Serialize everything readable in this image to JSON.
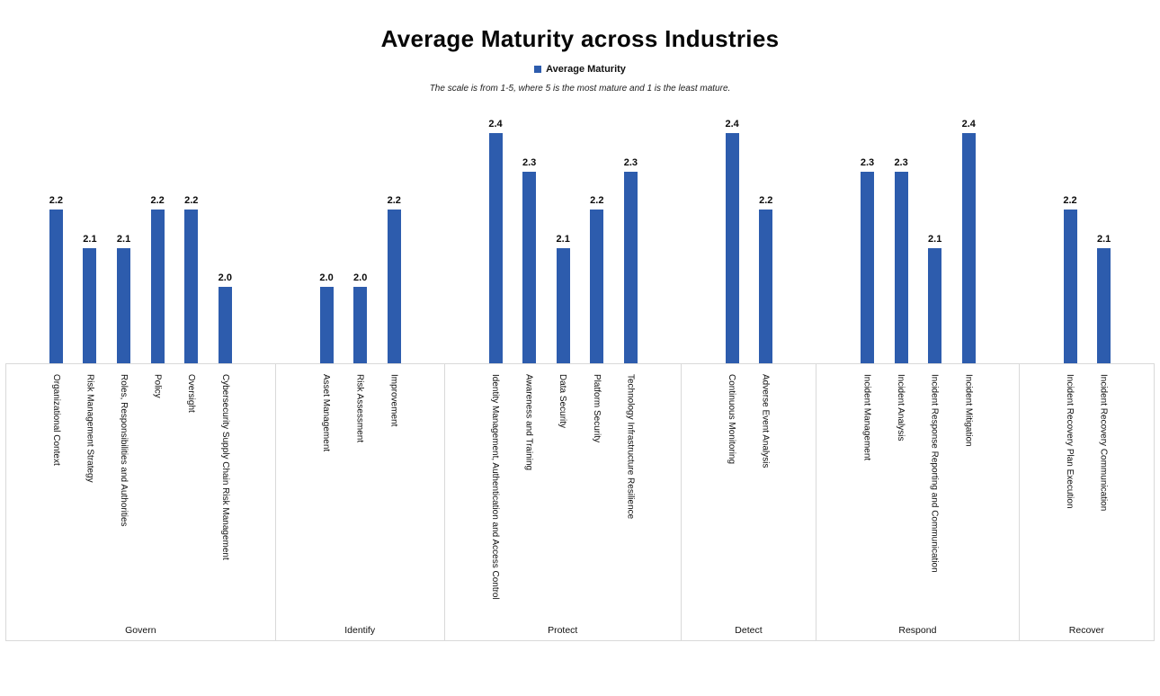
{
  "title": "Average Maturity across Industries",
  "subtitle": "The scale is from 1-5, where 5 is the most mature and 1 is the least mature.",
  "legend": {
    "label": "Average Maturity",
    "swatch_icon": "square-icon"
  },
  "colors": {
    "bar": "#2d5cad",
    "grid_line": "#d9d9d9",
    "text": "#000000"
  },
  "chart_data": {
    "type": "bar",
    "title": "Average Maturity across Industries",
    "subtitle_note": "The scale is from 1-5, where 5 is the most mature and 1 is the least mature.",
    "legend_entries": [
      "Average Maturity"
    ],
    "legend_position": "top",
    "grid": false,
    "y_axis_visible": false,
    "stated_scale": [
      1,
      5
    ],
    "ylim": [
      1.8,
      2.466
    ],
    "value_label_format": "one-decimal",
    "groups": [
      {
        "label": "Govern",
        "categories": [
          "Organizational Context",
          "Risk Management Strategy",
          "Roles, Responsibilities and Authorities",
          "Policy",
          "Oversight",
          "Cybersecurity Supply Chain Risk Management"
        ],
        "values": [
          2.2,
          2.1,
          2.1,
          2.2,
          2.2,
          2.0
        ]
      },
      {
        "label": "Identify",
        "categories": [
          "Asset Management",
          "Risk Assessment",
          "Improvement"
        ],
        "values": [
          2.0,
          2.0,
          2.2
        ]
      },
      {
        "label": "Protect",
        "categories": [
          "Identity Management, Authentication and Access Control",
          "Awareness and Training",
          "Data Security",
          "Platform Security",
          "Technology Infrastructure Resilience"
        ],
        "values": [
          2.4,
          2.3,
          2.1,
          2.2,
          2.3
        ]
      },
      {
        "label": "Detect",
        "categories": [
          "Continuous Monitoring",
          "Adverse Event Analysis"
        ],
        "values": [
          2.4,
          2.2
        ]
      },
      {
        "label": "Respond",
        "categories": [
          "Incident Management",
          "Incident Analysis",
          "Incident Response Reporting and Communication",
          "Incident Mitigation"
        ],
        "values": [
          2.3,
          2.3,
          2.1,
          2.4
        ]
      },
      {
        "label": "Recover",
        "categories": [
          "Incident Recovery Plan Execution",
          "Incident Recovery Communication"
        ],
        "values": [
          2.2,
          2.1
        ]
      }
    ]
  }
}
